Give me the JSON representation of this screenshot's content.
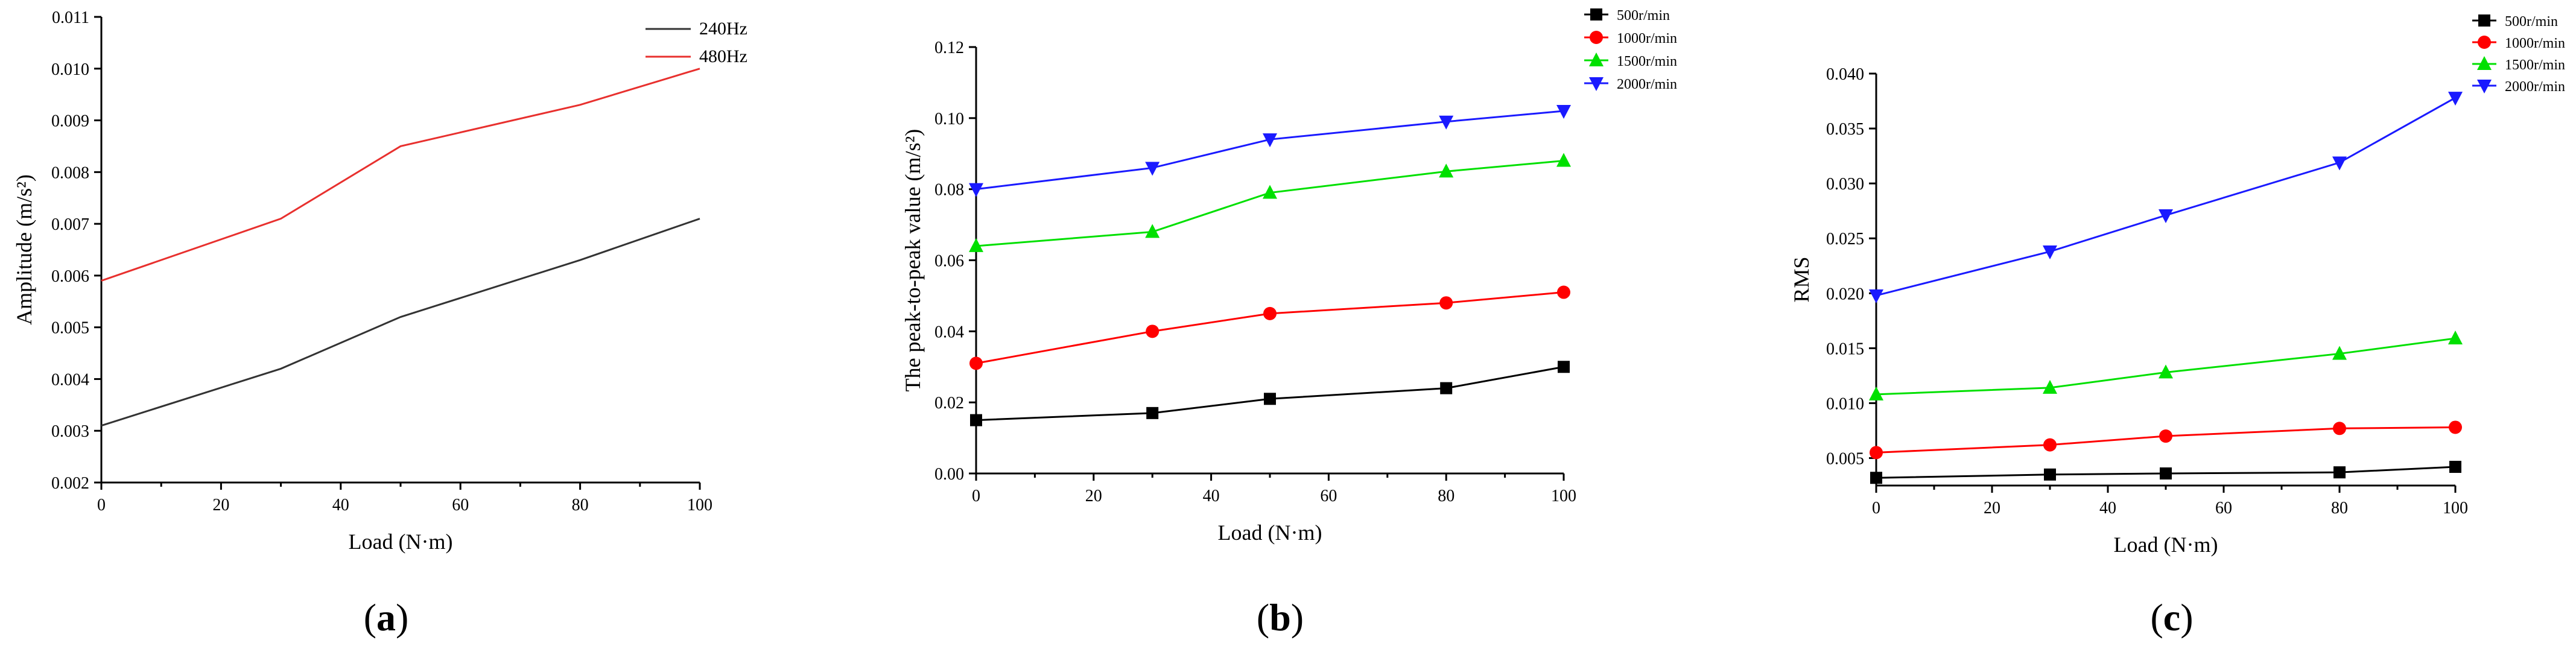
{
  "chart_data": [
    {
      "id": "a",
      "type": "line",
      "panel_label": "a",
      "xlabel": "Load (N·m)",
      "ylabel": "Amplitude (m/s²)",
      "xlim": [
        0,
        100
      ],
      "ylim": [
        0.002,
        0.011
      ],
      "x_ticks": [
        "0",
        "20",
        "40",
        "60",
        "80",
        "100"
      ],
      "y_ticks": [
        "0.002",
        "0.003",
        "0.004",
        "0.005",
        "0.006",
        "0.007",
        "0.008",
        "0.009",
        "0.010",
        "0.011"
      ],
      "legend_position": "top-right",
      "x": [
        0,
        30,
        50,
        80,
        100
      ],
      "series": [
        {
          "name": "240Hz",
          "color": "#333333",
          "marker": "none",
          "values": [
            0.0031,
            0.0042,
            0.0052,
            0.0063,
            0.0071
          ]
        },
        {
          "name": "480Hz",
          "color": "#e8302e",
          "marker": "none",
          "values": [
            0.0059,
            0.0071,
            0.0085,
            0.0093,
            0.01
          ]
        }
      ]
    },
    {
      "id": "b",
      "type": "line",
      "panel_label": "b",
      "xlabel": "Load (N·m)",
      "ylabel": "The peak-to-peak value (m/s²)",
      "xlim": [
        0,
        100
      ],
      "ylim": [
        0.0,
        0.12
      ],
      "x_ticks": [
        "0",
        "20",
        "40",
        "60",
        "80",
        "100"
      ],
      "y_ticks": [
        "0.00",
        "0.02",
        "0.04",
        "0.06",
        "0.08",
        "0.10",
        "0.12"
      ],
      "legend_position": "top-right",
      "x": [
        0,
        30,
        50,
        80,
        100
      ],
      "series": [
        {
          "name": "500r/min",
          "color": "#000000",
          "marker": "square",
          "values": [
            0.015,
            0.017,
            0.021,
            0.024,
            0.03
          ]
        },
        {
          "name": "1000r/min",
          "color": "#ff0000",
          "marker": "circle",
          "values": [
            0.031,
            0.04,
            0.045,
            0.048,
            0.051
          ]
        },
        {
          "name": "1500r/min",
          "color": "#00e000",
          "marker": "triangle-up",
          "values": [
            0.064,
            0.068,
            0.079,
            0.085,
            0.088
          ]
        },
        {
          "name": "2000r/min",
          "color": "#1a1aff",
          "marker": "triangle-down",
          "values": [
            0.08,
            0.086,
            0.094,
            0.099,
            0.102
          ]
        }
      ]
    },
    {
      "id": "c",
      "type": "line",
      "panel_label": "c",
      "xlabel": "Load (N·m)",
      "ylabel": "RMS",
      "xlim": [
        0,
        100
      ],
      "ylim": [
        0.0025,
        0.04
      ],
      "x_ticks": [
        "0",
        "20",
        "40",
        "60",
        "80",
        "100"
      ],
      "y_ticks": [
        "0.005",
        "0.010",
        "0.015",
        "0.020",
        "0.025",
        "0.030",
        "0.035",
        "0.040"
      ],
      "legend_position": "top-right",
      "x": [
        0,
        30,
        50,
        80,
        100
      ],
      "series": [
        {
          "name": "500r/min",
          "color": "#000000",
          "marker": "square",
          "values": [
            0.0032,
            0.0035,
            0.0036,
            0.0037,
            0.0042
          ]
        },
        {
          "name": "1000r/min",
          "color": "#ff0000",
          "marker": "circle",
          "values": [
            0.0055,
            0.0062,
            0.007,
            0.0077,
            0.0078
          ]
        },
        {
          "name": "1500r/min",
          "color": "#00e000",
          "marker": "triangle-up",
          "values": [
            0.0108,
            0.0114,
            0.0128,
            0.0145,
            0.0159
          ]
        },
        {
          "name": "2000r/min",
          "color": "#1a1aff",
          "marker": "triangle-down",
          "values": [
            0.0198,
            0.0238,
            0.0271,
            0.0319,
            0.0378
          ]
        }
      ]
    }
  ]
}
